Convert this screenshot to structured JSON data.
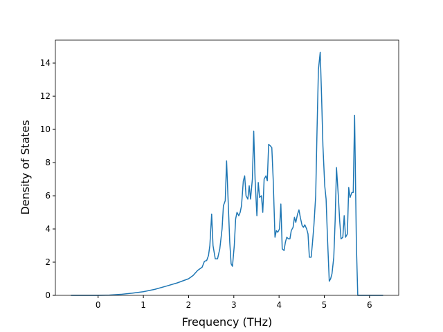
{
  "chart_data": {
    "type": "line",
    "xlabel": "Frequency (THz)",
    "ylabel": "Density of States",
    "color": "#1f77b4",
    "x": [
      -0.6,
      0,
      0.25,
      0.5,
      0.75,
      1,
      1.25,
      1.5,
      1.75,
      2,
      2.1,
      2.2,
      2.3,
      2.35,
      2.4,
      2.44,
      2.47,
      2.51,
      2.54,
      2.59,
      2.64,
      2.69,
      2.74,
      2.77,
      2.81,
      2.84,
      2.87,
      2.91,
      2.94,
      2.97,
      3.01,
      3.04,
      3.07,
      3.11,
      3.14,
      3.17,
      3.21,
      3.24,
      3.27,
      3.31,
      3.34,
      3.37,
      3.41,
      3.44,
      3.47,
      3.51,
      3.54,
      3.57,
      3.61,
      3.64,
      3.67,
      3.71,
      3.74,
      3.77,
      3.81,
      3.84,
      3.87,
      3.91,
      3.94,
      3.97,
      4.01,
      4.04,
      4.07,
      4.11,
      4.14,
      4.17,
      4.21,
      4.24,
      4.27,
      4.31,
      4.34,
      4.37,
      4.41,
      4.44,
      4.47,
      4.51,
      4.54,
      4.57,
      4.61,
      4.64,
      4.67,
      4.71,
      4.74,
      4.77,
      4.81,
      4.84,
      4.87,
      4.91,
      4.94,
      4.97,
      5.01,
      5.04,
      5.07,
      5.11,
      5.14,
      5.17,
      5.21,
      5.24,
      5.27,
      5.31,
      5.34,
      5.37,
      5.41,
      5.44,
      5.47,
      5.51,
      5.54,
      5.57,
      5.61,
      5.64,
      5.67,
      5.71,
      5.74,
      6.3
    ],
    "values": [
      0,
      0,
      0.015,
      0.06,
      0.13,
      0.22,
      0.36,
      0.55,
      0.75,
      1.0,
      1.2,
      1.5,
      1.7,
      2.05,
      2.1,
      2.4,
      3.0,
      4.9,
      3.0,
      2.2,
      2.2,
      2.8,
      4.0,
      5.4,
      5.7,
      8.1,
      6.0,
      3.2,
      1.9,
      1.75,
      3.0,
      4.6,
      5.0,
      4.8,
      5.0,
      5.4,
      6.9,
      7.2,
      6.0,
      5.8,
      6.6,
      5.8,
      7.0,
      9.9,
      7.0,
      4.8,
      6.8,
      5.9,
      6.0,
      5.0,
      7.0,
      7.2,
      6.9,
      9.1,
      9.0,
      8.9,
      7.0,
      3.5,
      3.9,
      3.8,
      4.0,
      5.5,
      2.8,
      2.7,
      3.2,
      3.5,
      3.4,
      3.4,
      3.9,
      4.1,
      4.7,
      4.4,
      4.9,
      5.15,
      4.7,
      4.2,
      4.1,
      4.25,
      4.0,
      3.7,
      2.3,
      2.3,
      3.2,
      4.2,
      6.0,
      10.0,
      13.6,
      14.65,
      12.0,
      9.0,
      6.6,
      5.8,
      3.5,
      0.85,
      1.0,
      1.3,
      2.3,
      4.5,
      7.7,
      6.0,
      4.5,
      3.4,
      3.5,
      4.8,
      3.5,
      3.7,
      6.5,
      5.9,
      6.2,
      6.2,
      10.85,
      3.0,
      0,
      0
    ],
    "xlim": [
      -0.945,
      6.645
    ],
    "ylim": [
      0,
      15.38
    ],
    "xticks": [
      0,
      1,
      2,
      3,
      4,
      5,
      6
    ],
    "yticks": [
      0,
      2,
      4,
      6,
      8,
      10,
      12,
      14
    ]
  }
}
